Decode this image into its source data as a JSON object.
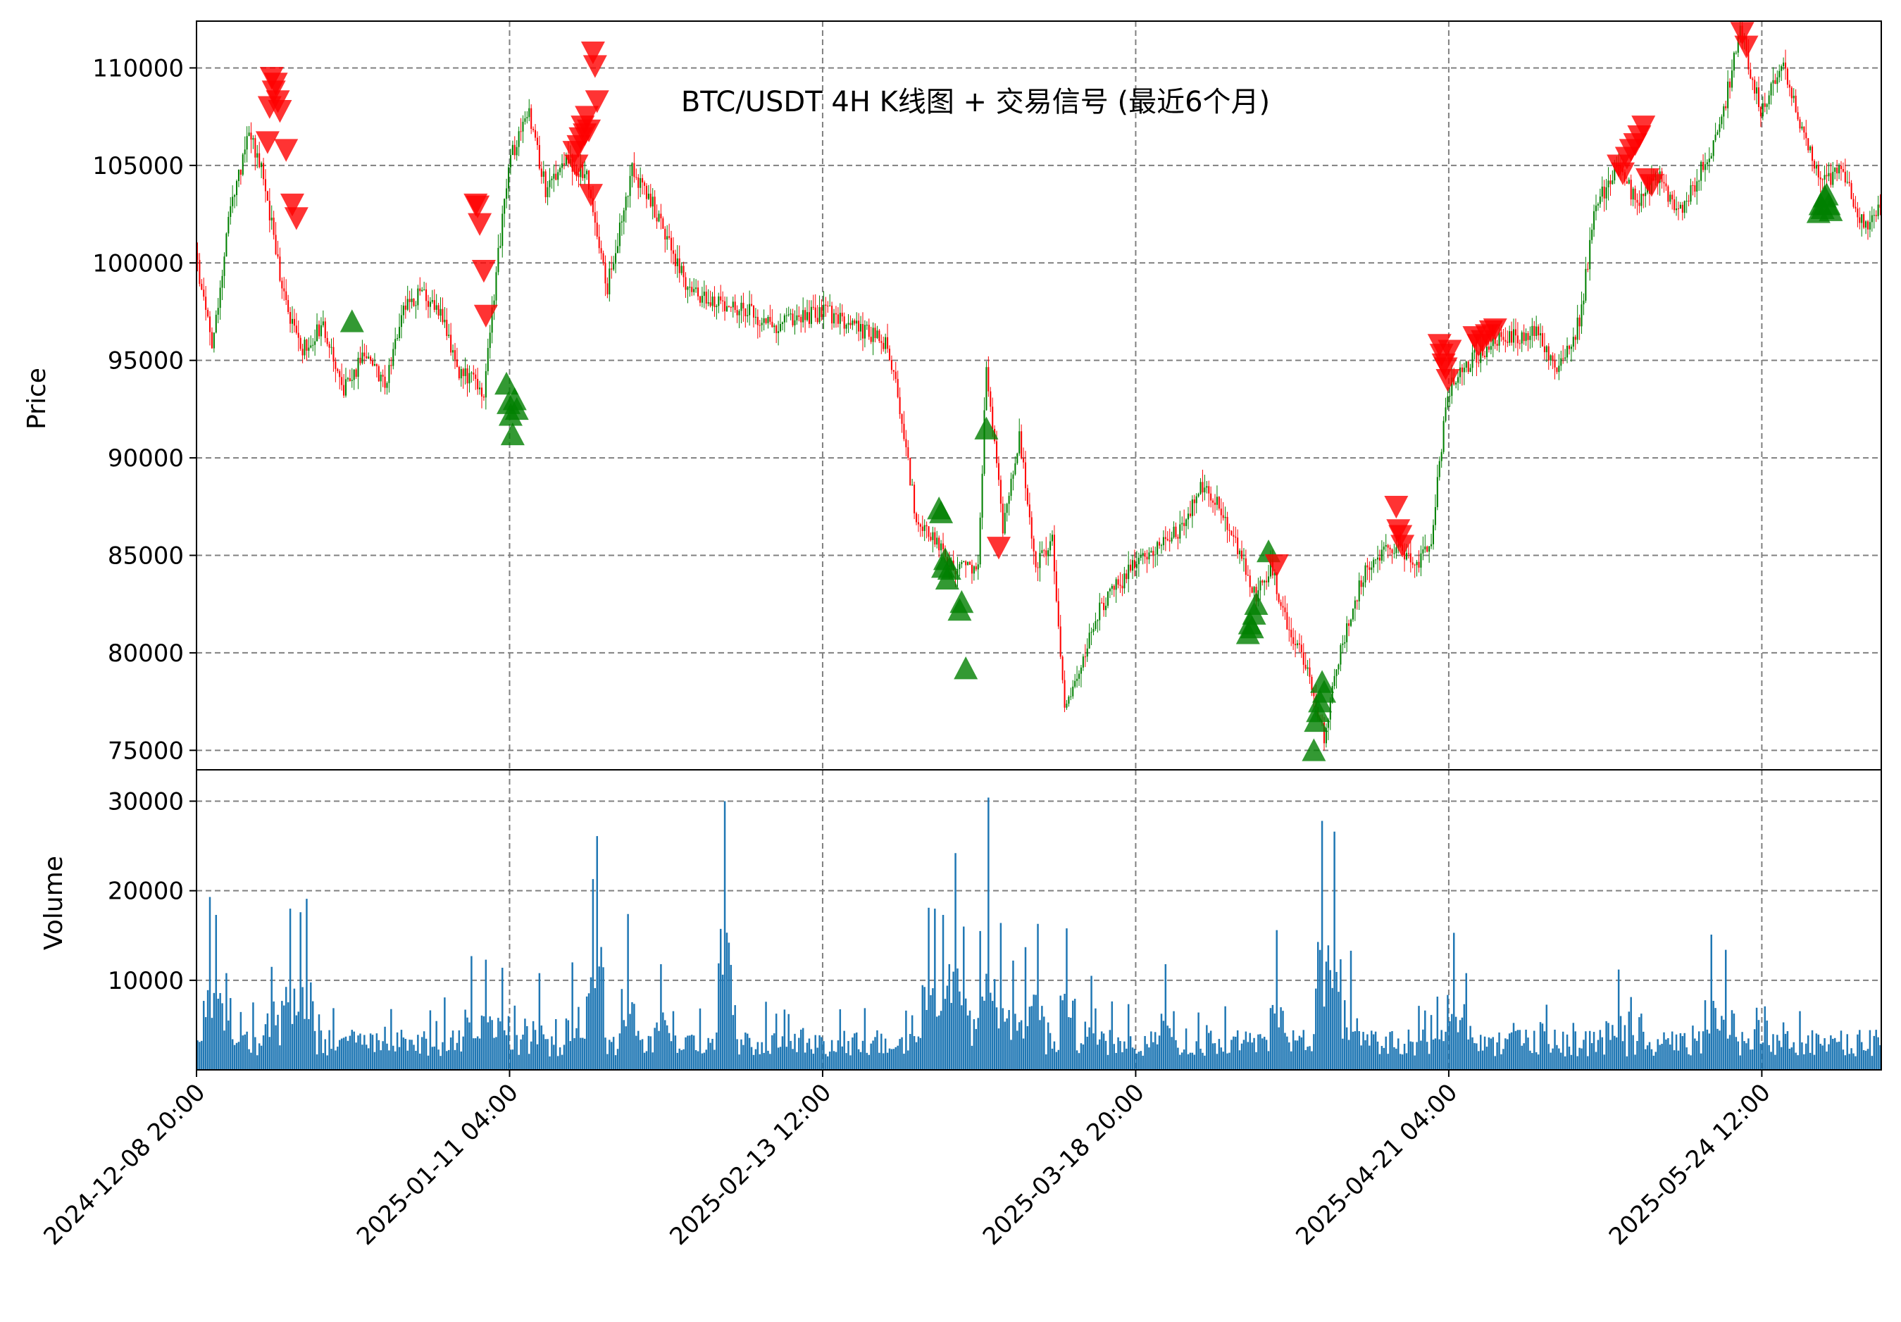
{
  "chart_data": [
    {
      "panel": "price",
      "type": "candlestick",
      "title": "BTC/USDT 4H K线图 + 交易信号 (最近6个月)",
      "ylabel": "Price",
      "ylim": [
        74000,
        112400
      ],
      "yticks": [
        "75000",
        "80000",
        "85000",
        "90000",
        "95000",
        "100000",
        "105000",
        "110000"
      ],
      "grid": true,
      "colors": {
        "up": "#008000",
        "down": "#ff0000",
        "buy_signal": "#008000",
        "sell_signal": "#ff0000",
        "grid": "#808080"
      },
      "price_path": [
        [
          0,
          100500
        ],
        [
          8,
          95800
        ],
        [
          16,
          102000
        ],
        [
          26,
          106800
        ],
        [
          34,
          104000
        ],
        [
          42,
          98500
        ],
        [
          52,
          95500
        ],
        [
          62,
          96800
        ],
        [
          72,
          93500
        ],
        [
          82,
          95300
        ],
        [
          92,
          93800
        ],
        [
          102,
          97800
        ],
        [
          110,
          98400
        ],
        [
          120,
          97200
        ],
        [
          128,
          94500
        ],
        [
          140,
          93500
        ],
        [
          152,
          105200
        ],
        [
          162,
          107500
        ],
        [
          170,
          103800
        ],
        [
          180,
          105200
        ],
        [
          190,
          104500
        ],
        [
          200,
          98800
        ],
        [
          212,
          104800
        ],
        [
          222,
          103000
        ],
        [
          240,
          98500
        ],
        [
          262,
          97800
        ],
        [
          282,
          96800
        ],
        [
          306,
          97500
        ],
        [
          325,
          96500
        ],
        [
          335,
          95900
        ],
        [
          340,
          93800
        ],
        [
          350,
          86800
        ],
        [
          368,
          84500
        ],
        [
          380,
          84200
        ],
        [
          384,
          94800
        ],
        [
          392,
          86500
        ],
        [
          400,
          91000
        ],
        [
          408,
          84500
        ],
        [
          416,
          85800
        ],
        [
          422,
          77000
        ],
        [
          428,
          79000
        ],
        [
          440,
          82500
        ],
        [
          460,
          85000
        ],
        [
          480,
          86500
        ],
        [
          490,
          88800
        ],
        [
          500,
          87000
        ],
        [
          515,
          82800
        ],
        [
          522,
          84500
        ],
        [
          530,
          81500
        ],
        [
          540,
          79000
        ],
        [
          548,
          75800
        ],
        [
          556,
          80000
        ],
        [
          566,
          83800
        ],
        [
          580,
          85500
        ],
        [
          594,
          84800
        ],
        [
          600,
          86000
        ],
        [
          608,
          93500
        ],
        [
          620,
          95000
        ],
        [
          632,
          96000
        ],
        [
          650,
          96500
        ],
        [
          662,
          94500
        ],
        [
          672,
          97000
        ],
        [
          680,
          103000
        ],
        [
          690,
          104800
        ],
        [
          700,
          103200
        ],
        [
          710,
          104500
        ],
        [
          720,
          102500
        ],
        [
          730,
          104500
        ],
        [
          740,
          106800
        ],
        [
          750,
          112000
        ],
        [
          760,
          107800
        ],
        [
          770,
          110200
        ],
        [
          780,
          107000
        ],
        [
          790,
          104000
        ],
        [
          800,
          104800
        ],
        [
          810,
          101800
        ],
        [
          818,
          103000
        ]
      ],
      "buy_signals": [
        [
          75,
          97000
        ],
        [
          150,
          93800
        ],
        [
          151,
          92800
        ],
        [
          152,
          92200
        ],
        [
          153,
          91200
        ],
        [
          154,
          93000
        ],
        [
          155,
          92500
        ],
        [
          360,
          87400
        ],
        [
          361,
          87200
        ],
        [
          362,
          84400
        ],
        [
          363,
          84800
        ],
        [
          364,
          83800
        ],
        [
          365,
          84300
        ],
        [
          370,
          82200
        ],
        [
          371,
          82600
        ],
        [
          373,
          79200
        ],
        [
          383,
          91500
        ],
        [
          510,
          81000
        ],
        [
          511,
          81500
        ],
        [
          512,
          81300
        ],
        [
          513,
          82000
        ],
        [
          514,
          82500
        ],
        [
          520,
          85200
        ],
        [
          542,
          75000
        ],
        [
          543,
          76500
        ],
        [
          544,
          77000
        ],
        [
          545,
          77500
        ],
        [
          546,
          78500
        ],
        [
          547,
          78000
        ],
        [
          787,
          102600
        ],
        [
          788,
          103000
        ],
        [
          789,
          102800
        ],
        [
          790,
          103400
        ],
        [
          791,
          103500
        ],
        [
          792,
          103000
        ],
        [
          793,
          102700
        ]
      ],
      "sell_signals": [
        [
          34,
          106200
        ],
        [
          35,
          108000
        ],
        [
          36,
          109500
        ],
        [
          37,
          108800
        ],
        [
          38,
          109200
        ],
        [
          39,
          108300
        ],
        [
          40,
          107800
        ],
        [
          43,
          105800
        ],
        [
          46,
          103000
        ],
        [
          48,
          102300
        ],
        [
          135,
          103000
        ],
        [
          136,
          102900
        ],
        [
          137,
          102000
        ],
        [
          139,
          99600
        ],
        [
          140,
          97300
        ],
        [
          183,
          105700
        ],
        [
          184,
          105000
        ],
        [
          185,
          106000
        ],
        [
          186,
          106400
        ],
        [
          187,
          107000
        ],
        [
          188,
          106600
        ],
        [
          189,
          107500
        ],
        [
          190,
          106800
        ],
        [
          191,
          103500
        ],
        [
          192,
          110800
        ],
        [
          193,
          110100
        ],
        [
          194,
          108300
        ],
        [
          389,
          85400
        ],
        [
          524,
          84500
        ],
        [
          582,
          87500
        ],
        [
          583,
          86300
        ],
        [
          584,
          86000
        ],
        [
          585,
          85500
        ],
        [
          603,
          95800
        ],
        [
          604,
          95300
        ],
        [
          605,
          94800
        ],
        [
          606,
          94600
        ],
        [
          607,
          94000
        ],
        [
          608,
          95500
        ],
        [
          620,
          96200
        ],
        [
          622,
          95800
        ],
        [
          624,
          96000
        ],
        [
          626,
          96300
        ],
        [
          628,
          96500
        ],
        [
          630,
          96600
        ],
        [
          690,
          105000
        ],
        [
          692,
          104600
        ],
        [
          694,
          105400
        ],
        [
          696,
          105800
        ],
        [
          698,
          106100
        ],
        [
          700,
          106500
        ],
        [
          702,
          107000
        ],
        [
          704,
          104300
        ],
        [
          706,
          104000
        ],
        [
          750,
          111800
        ],
        [
          752,
          111100
        ]
      ]
    },
    {
      "panel": "volume",
      "type": "bar",
      "ylabel": "Volume",
      "ylim": [
        0,
        33500
      ],
      "yticks": [
        "10000",
        "20000",
        "30000"
      ],
      "grid": true,
      "color": "#1f77b4",
      "peaks": [
        [
          6,
          19300
        ],
        [
          9,
          17300
        ],
        [
          14,
          10800
        ],
        [
          36,
          11500
        ],
        [
          45,
          18000
        ],
        [
          50,
          17600
        ],
        [
          53,
          19100
        ],
        [
          133,
          12700
        ],
        [
          140,
          12300
        ],
        [
          148,
          11400
        ],
        [
          166,
          10800
        ],
        [
          182,
          12000
        ],
        [
          192,
          21300
        ],
        [
          194,
          26100
        ],
        [
          209,
          17400
        ],
        [
          225,
          11800
        ],
        [
          256,
          30000
        ],
        [
          258,
          14200
        ],
        [
          355,
          18100
        ],
        [
          358,
          18000
        ],
        [
          362,
          17300
        ],
        [
          368,
          24200
        ],
        [
          372,
          16000
        ],
        [
          380,
          15500
        ],
        [
          384,
          30400
        ],
        [
          390,
          16400
        ],
        [
          396,
          12200
        ],
        [
          402,
          13700
        ],
        [
          408,
          16300
        ],
        [
          422,
          15800
        ],
        [
          434,
          10500
        ],
        [
          470,
          11800
        ],
        [
          524,
          15600
        ],
        [
          546,
          27800
        ],
        [
          552,
          26600
        ],
        [
          560,
          13300
        ],
        [
          610,
          15300
        ],
        [
          616,
          10800
        ],
        [
          690,
          11200
        ],
        [
          735,
          15100
        ],
        [
          742,
          13400
        ]
      ]
    }
  ],
  "x_axis": {
    "count": 818,
    "ticks": [
      {
        "index": 0,
        "label": "2024-12-08 20:00"
      },
      {
        "index": 152,
        "label": "2025-01-11 04:00"
      },
      {
        "index": 304,
        "label": "2025-02-13 12:00"
      },
      {
        "index": 456,
        "label": "2025-03-18 20:00"
      },
      {
        "index": 608,
        "label": "2025-04-21 04:00"
      },
      {
        "index": 760,
        "label": "2025-05-24 12:00"
      }
    ]
  }
}
